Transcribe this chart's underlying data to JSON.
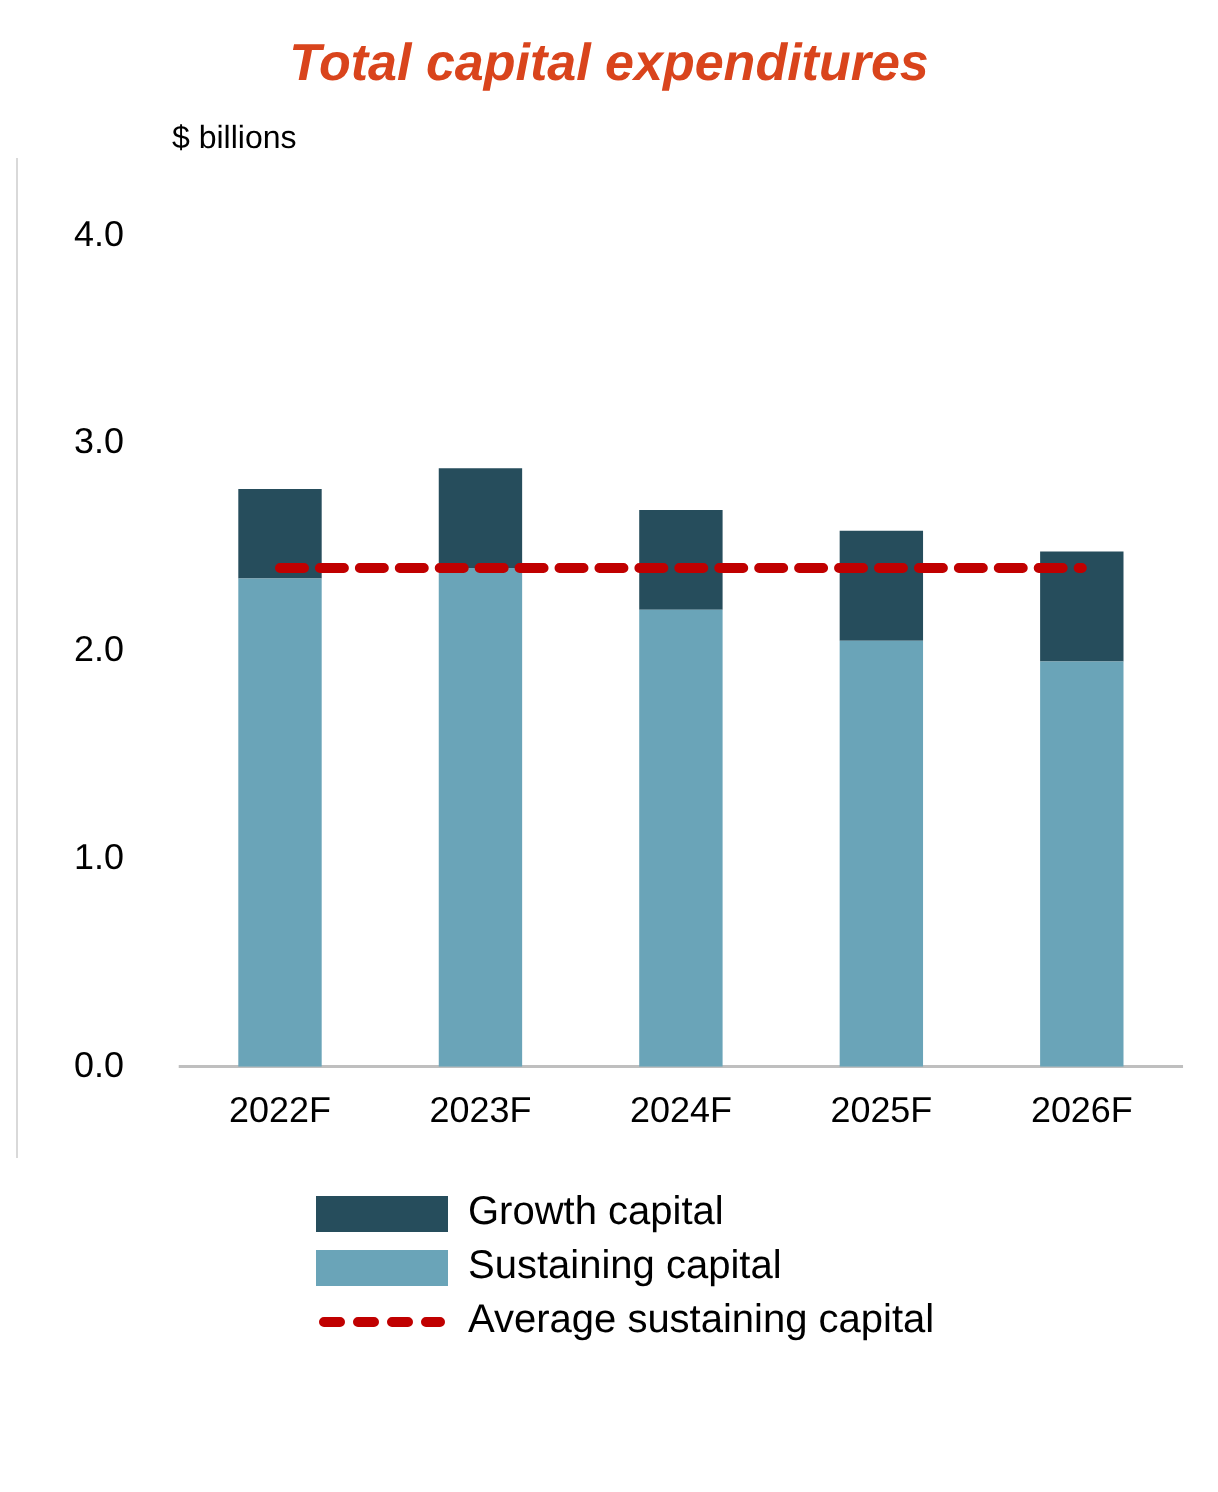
{
  "chart_data": {
    "type": "bar",
    "title": "Total capital expenditures",
    "ylabel": "$ billions",
    "categories": [
      "2022F",
      "2023F",
      "2024F",
      "2025F",
      "2026F"
    ],
    "stacked": true,
    "series": [
      {
        "name": "Sustaining capital",
        "color": "#6aa4b8",
        "values": [
          2.35,
          2.4,
          2.2,
          2.05,
          1.95
        ]
      },
      {
        "name": "Growth capital",
        "color": "#264d5c",
        "values": [
          0.43,
          0.48,
          0.48,
          0.53,
          0.53
        ]
      },
      {
        "name": "Average sustaining capital",
        "type": "line",
        "color": "#c00000",
        "line_style": "dashed",
        "marker": "none",
        "values": [
          2.4,
          2.4,
          2.4,
          2.4,
          2.4
        ]
      }
    ],
    "ylim": [
      0,
      4
    ],
    "yticks": [
      {
        "value": 0,
        "label": "0.0"
      },
      {
        "value": 1,
        "label": "1.0"
      },
      {
        "value": 2,
        "label": "2.0"
      },
      {
        "value": 3,
        "label": "3.0"
      },
      {
        "value": 4,
        "label": "4.0"
      }
    ],
    "grid": false,
    "legend": "bottom"
  }
}
